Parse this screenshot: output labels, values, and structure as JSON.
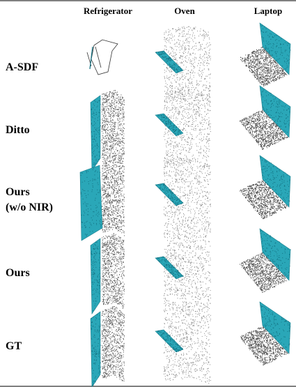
{
  "columns": [
    "Refrigerator",
    "Oven",
    "Laptop"
  ],
  "rows": [
    [
      "A-SDF"
    ],
    [
      "Ditto"
    ],
    [
      "Ours",
      "(w/o NIR)"
    ],
    [
      "Ours"
    ],
    [
      "GT"
    ]
  ]
}
